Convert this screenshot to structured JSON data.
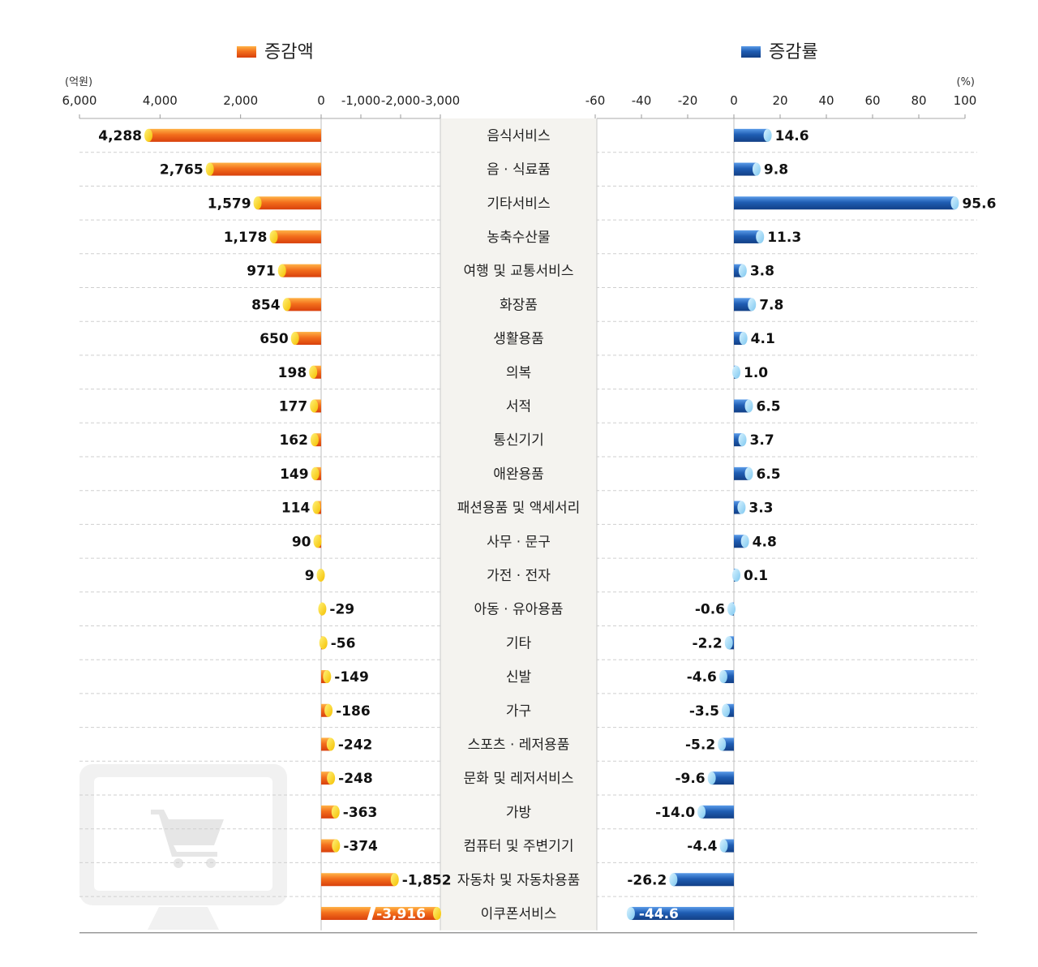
{
  "chart_data": {
    "type": "bar",
    "categories": [
      "음식서비스",
      "음 · 식료품",
      "기타서비스",
      "농축수산물",
      "여행 및 교통서비스",
      "화장품",
      "생활용품",
      "의복",
      "서적",
      "통신기기",
      "애완용품",
      "패션용품 및 액세서리",
      "사무 · 문구",
      "가전 · 전자",
      "아동 · 유아용품",
      "기타",
      "신발",
      "가구",
      "스포츠 · 레저용품",
      "문화 및 레저서비스",
      "가방",
      "컴퓨터 및 주변기기",
      "자동차 및 자동차용품",
      "이쿠폰서비스"
    ],
    "series": [
      {
        "name": "증감액",
        "unit_label": "(억원)",
        "color": "#f36f1c",
        "tick_labels": [
          "6,000",
          "4,000",
          "2,000",
          "0",
          "-1,000",
          "-2,000",
          "-3,000"
        ],
        "tick_values": [
          6000,
          4000,
          2000,
          0,
          -1000,
          -2000,
          -3000
        ],
        "values": [
          4288,
          2765,
          1579,
          1178,
          971,
          854,
          650,
          198,
          177,
          162,
          149,
          114,
          90,
          9,
          -29,
          -56,
          -149,
          -186,
          -242,
          -248,
          -363,
          -374,
          -1852,
          -3916
        ],
        "labels": [
          "4,288",
          "2,765",
          "1,579",
          "1,178",
          "971",
          "854",
          "650",
          "198",
          "177",
          "162",
          "149",
          "114",
          "90",
          "9",
          "-29",
          "-56",
          "-149",
          "-186",
          "-242",
          "-248",
          "-363",
          "-374",
          "-1,852",
          "-3,916"
        ]
      },
      {
        "name": "증감률",
        "unit_label": "(%)",
        "color": "#1f5db3",
        "tick_labels": [
          "-60",
          "-40",
          "-20",
          "0",
          "20",
          "40",
          "60",
          "80",
          "100"
        ],
        "tick_values": [
          -60,
          -40,
          -20,
          0,
          20,
          40,
          60,
          80,
          100
        ],
        "values": [
          14.6,
          9.8,
          95.6,
          11.3,
          3.8,
          7.8,
          4.1,
          1.0,
          6.5,
          3.7,
          6.5,
          3.3,
          4.8,
          0.1,
          -0.6,
          -2.2,
          -4.6,
          -3.5,
          -5.2,
          -9.6,
          -14.0,
          -4.4,
          -26.2,
          -44.6
        ],
        "labels": [
          "14.6",
          "9.8",
          "95.6",
          "11.3",
          "3.8",
          "7.8",
          "4.1",
          "1.0",
          "6.5",
          "3.7",
          "6.5",
          "3.3",
          "4.8",
          "0.1",
          "-0.6",
          "-2.2",
          "-4.6",
          "-3.5",
          "-5.2",
          "-9.6",
          "-14.0",
          "-4.4",
          "-26.2",
          "-44.6"
        ]
      }
    ],
    "legend_position": "top",
    "decoration": "monitor-cart-icon"
  }
}
